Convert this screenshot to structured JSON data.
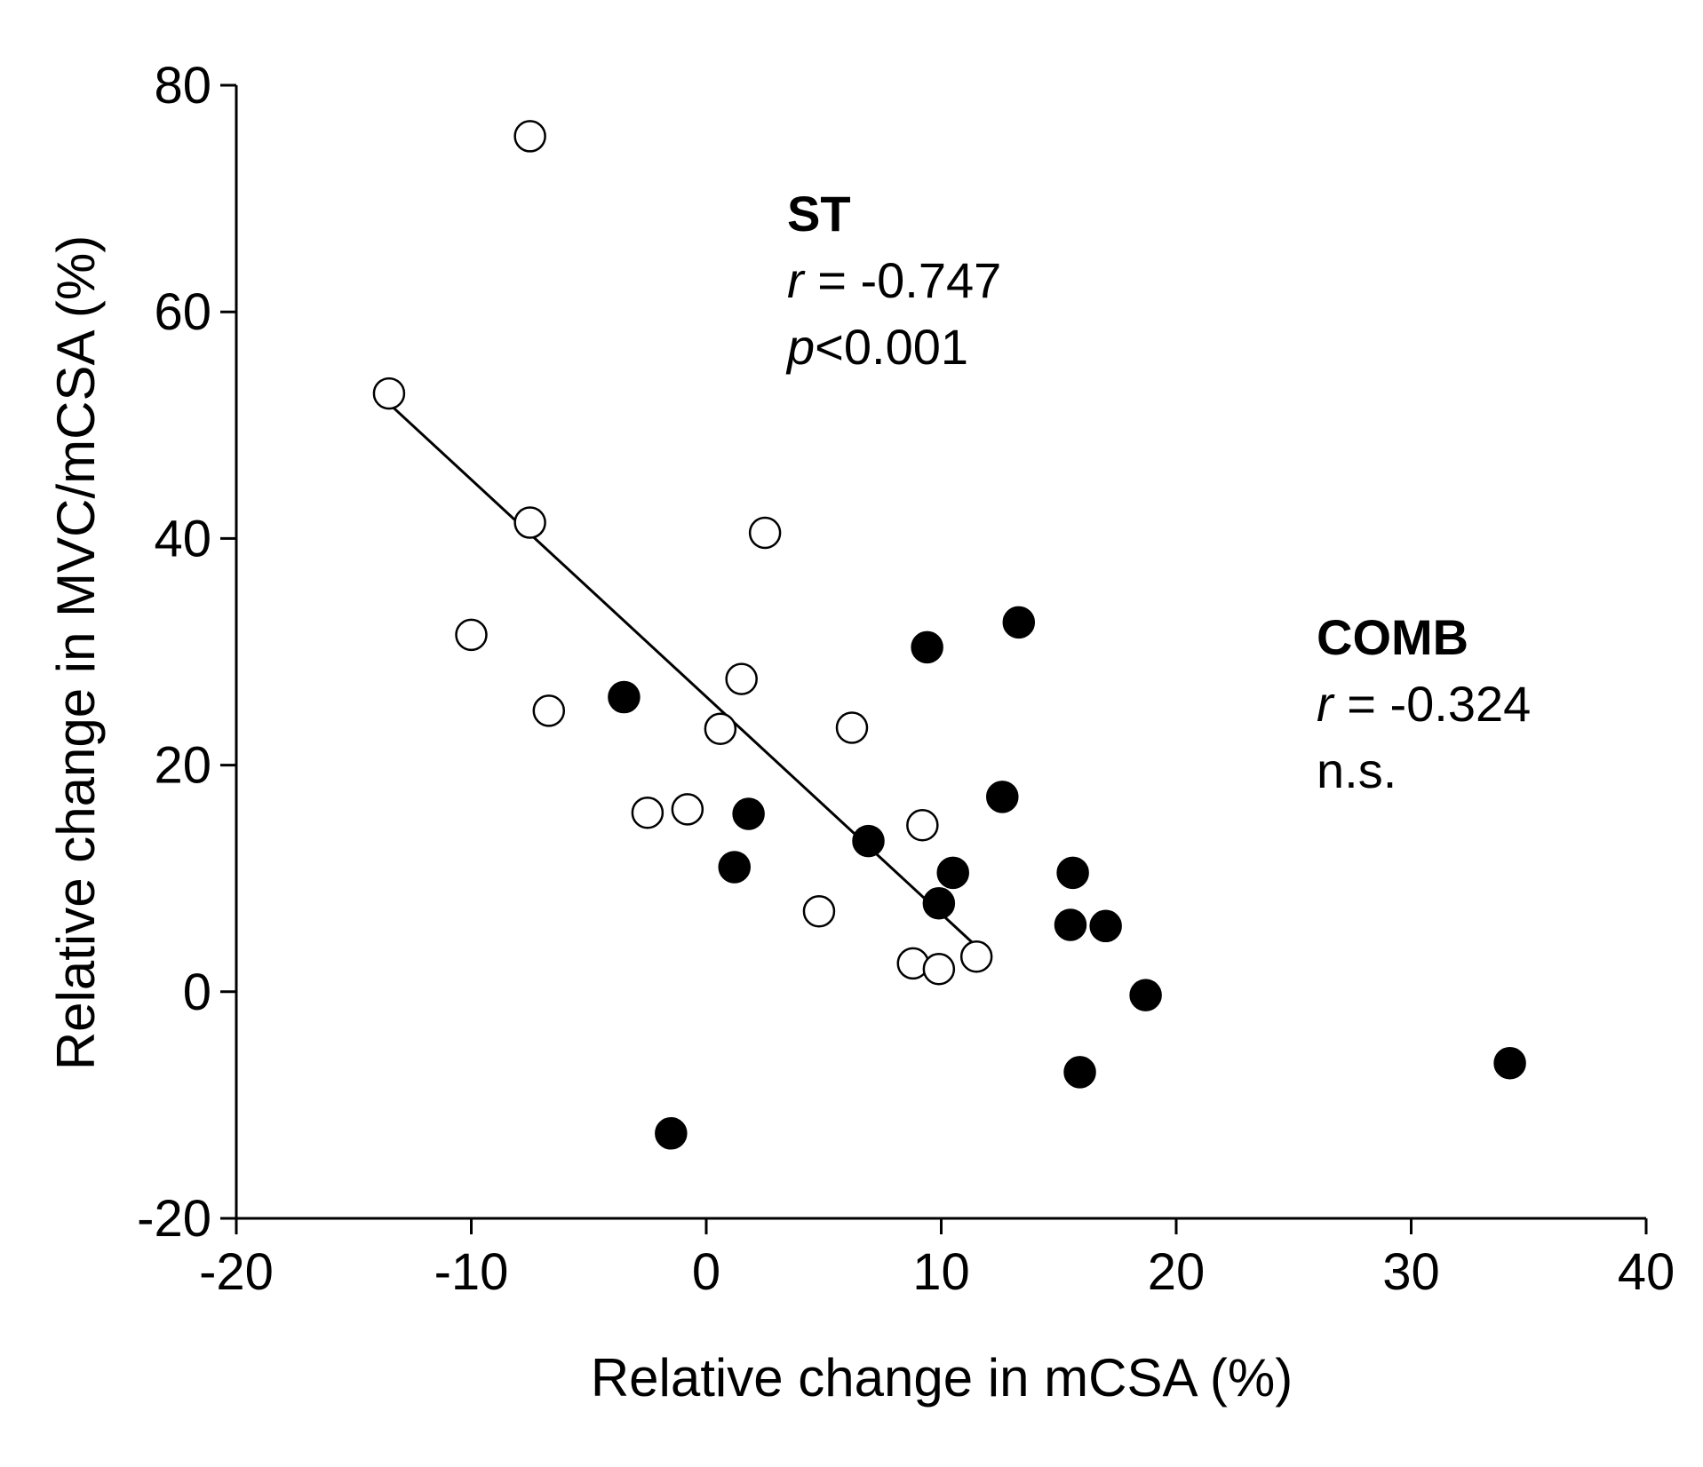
{
  "chart_data": {
    "type": "scatter",
    "title": "",
    "xlabel": "Relative change in mCSA (%)",
    "ylabel": "Relative change in MVC/mCSA (%)",
    "xlim": [
      -20,
      40
    ],
    "ylim": [
      -20,
      80
    ],
    "xticks": [
      -20,
      -10,
      0,
      10,
      20,
      30,
      40
    ],
    "yticks": [
      -20,
      0,
      20,
      40,
      60,
      80
    ],
    "xtick_labels": [
      "-20",
      "-10",
      "0",
      "10",
      "20",
      "30",
      "40"
    ],
    "ytick_labels": [
      "-20",
      "0",
      "20",
      "40",
      "60",
      "80"
    ],
    "grid": false,
    "series": [
      {
        "name": "ST",
        "marker": "open-circle",
        "color": "#000000",
        "points": [
          {
            "x": -7.5,
            "y": 75.5
          },
          {
            "x": -13.5,
            "y": 52.8
          },
          {
            "x": -7.5,
            "y": 41.4
          },
          {
            "x": 2.5,
            "y": 40.5
          },
          {
            "x": -10.0,
            "y": 31.5
          },
          {
            "x": -6.7,
            "y": 24.8
          },
          {
            "x": 1.5,
            "y": 27.6
          },
          {
            "x": 0.6,
            "y": 23.2
          },
          {
            "x": 6.2,
            "y": 23.3
          },
          {
            "x": -2.5,
            "y": 15.8
          },
          {
            "x": -0.8,
            "y": 16.1
          },
          {
            "x": 9.2,
            "y": 14.7
          },
          {
            "x": 4.8,
            "y": 7.1
          },
          {
            "x": 8.8,
            "y": 2.5
          },
          {
            "x": 9.9,
            "y": 2.0
          },
          {
            "x": 11.5,
            "y": 3.1
          }
        ]
      },
      {
        "name": "COMB",
        "marker": "filled-circle",
        "color": "#000000",
        "points": [
          {
            "x": -3.5,
            "y": 26.0
          },
          {
            "x": 1.8,
            "y": 15.7
          },
          {
            "x": 1.2,
            "y": 11.0
          },
          {
            "x": -1.5,
            "y": -12.5
          },
          {
            "x": 6.9,
            "y": 13.3
          },
          {
            "x": 9.4,
            "y": 30.4
          },
          {
            "x": 13.3,
            "y": 32.6
          },
          {
            "x": 12.6,
            "y": 17.2
          },
          {
            "x": 10.5,
            "y": 10.5
          },
          {
            "x": 9.9,
            "y": 7.8
          },
          {
            "x": 15.6,
            "y": 10.5
          },
          {
            "x": 15.5,
            "y": 5.9
          },
          {
            "x": 17.0,
            "y": 5.8
          },
          {
            "x": 18.7,
            "y": -0.3
          },
          {
            "x": 15.9,
            "y": -7.1
          },
          {
            "x": 34.2,
            "y": -6.3
          }
        ]
      }
    ],
    "fit_lines": [
      {
        "series": "ST",
        "x": [
          -13.5,
          11.5
        ],
        "y": [
          51.9,
          4.0
        ]
      }
    ],
    "annotations": {
      "st": {
        "label": "ST",
        "r_symbol": "r",
        "r_text": " = -0.747",
        "p_symbol": "p",
        "p_text": "<0.001"
      },
      "comb": {
        "label": "COMB",
        "r_symbol": "r",
        "r_text": " = -0.324",
        "sig_text": "n.s."
      }
    }
  }
}
